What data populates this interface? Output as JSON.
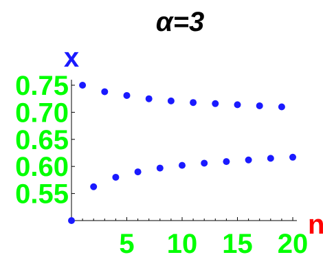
{
  "colors": {
    "title": "#000000",
    "ylabel": "#1a1aff",
    "xlabel": "#ff0000",
    "ticks": "#00ff00",
    "points": "#1a1aff",
    "axis": "#000000"
  },
  "chart_data": {
    "type": "scatter",
    "title": "α=3",
    "xlabel": "n",
    "ylabel": "x",
    "xlim": [
      0,
      20
    ],
    "ylim": [
      0.5,
      0.75
    ],
    "x_ticks": [
      5,
      10,
      15,
      20
    ],
    "x_tick_labels": [
      "5",
      "10",
      "15",
      "20"
    ],
    "y_ticks": [
      0.55,
      0.6,
      0.65,
      0.7,
      0.75
    ],
    "y_tick_labels": [
      "0.55",
      "0.60",
      "0.65",
      "0.70",
      "0.75"
    ],
    "grid": false,
    "series": [
      {
        "x": [
          0,
          1,
          2,
          3,
          4,
          5,
          6,
          7,
          8,
          9,
          10,
          11,
          12,
          13,
          14,
          15,
          16,
          17,
          18,
          19,
          20
        ],
        "y": [
          0.5,
          0.75,
          0.5625,
          0.738,
          0.58,
          0.731,
          0.59,
          0.725,
          0.597,
          0.721,
          0.602,
          0.718,
          0.606,
          0.716,
          0.609,
          0.714,
          0.612,
          0.712,
          0.615,
          0.71,
          0.617
        ]
      }
    ]
  }
}
